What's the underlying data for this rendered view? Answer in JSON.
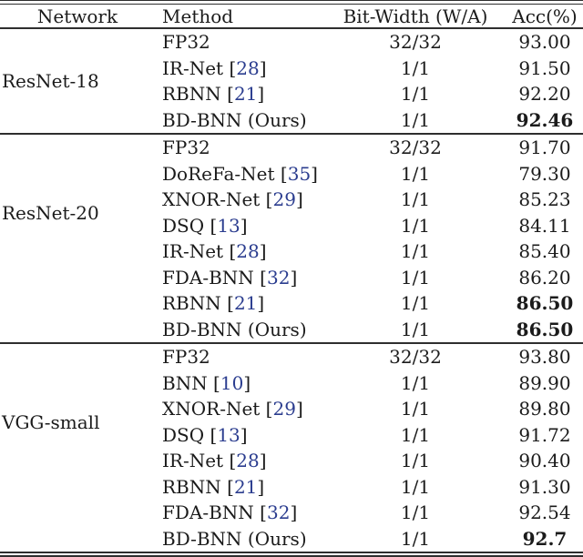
{
  "colors": {
    "citation_link": "#2b3d8f",
    "rule": "#2e2e2e",
    "text": "#1b1b1b"
  },
  "table": {
    "headers": {
      "network": "Network",
      "method": "Method",
      "bitwidth": "Bit-Width (W/A)",
      "acc": "Acc(%)"
    },
    "groups": [
      {
        "network": "ResNet-18",
        "rows": [
          {
            "method": "FP32",
            "cite": "",
            "bitwidth": "32/32",
            "acc": "93.00",
            "bold": false
          },
          {
            "method": "IR-Net",
            "cite": "28",
            "bitwidth": "1/1",
            "acc": "91.50",
            "bold": false
          },
          {
            "method": "RBNN",
            "cite": "21",
            "bitwidth": "1/1",
            "acc": "92.20",
            "bold": false
          },
          {
            "method": "BD-BNN (Ours)",
            "cite": "",
            "bitwidth": "1/1",
            "acc": "92.46",
            "bold": true
          }
        ]
      },
      {
        "network": "ResNet-20",
        "rows": [
          {
            "method": "FP32",
            "cite": "",
            "bitwidth": "32/32",
            "acc": "91.70",
            "bold": false
          },
          {
            "method": "DoReFa-Net",
            "cite": "35",
            "bitwidth": "1/1",
            "acc": "79.30",
            "bold": false
          },
          {
            "method": "XNOR-Net",
            "cite": "29",
            "bitwidth": "1/1",
            "acc": "85.23",
            "bold": false
          },
          {
            "method": "DSQ",
            "cite": "13",
            "bitwidth": "1/1",
            "acc": "84.11",
            "bold": false
          },
          {
            "method": "IR-Net",
            "cite": "28",
            "bitwidth": "1/1",
            "acc": "85.40",
            "bold": false
          },
          {
            "method": "FDA-BNN",
            "cite": "32",
            "bitwidth": "1/1",
            "acc": "86.20",
            "bold": false
          },
          {
            "method": "RBNN",
            "cite": "21",
            "bitwidth": "1/1",
            "acc": "86.50",
            "bold": true
          },
          {
            "method": "BD-BNN (Ours)",
            "cite": "",
            "bitwidth": "1/1",
            "acc": "86.50",
            "bold": true
          }
        ]
      },
      {
        "network": "VGG-small",
        "rows": [
          {
            "method": "FP32",
            "cite": "",
            "bitwidth": "32/32",
            "acc": "93.80",
            "bold": false
          },
          {
            "method": "BNN",
            "cite": "10",
            "bitwidth": "1/1",
            "acc": "89.90",
            "bold": false
          },
          {
            "method": "XNOR-Net",
            "cite": "29",
            "bitwidth": "1/1",
            "acc": "89.80",
            "bold": false
          },
          {
            "method": "DSQ",
            "cite": "13",
            "bitwidth": "1/1",
            "acc": "91.72",
            "bold": false
          },
          {
            "method": "IR-Net",
            "cite": "28",
            "bitwidth": "1/1",
            "acc": "90.40",
            "bold": false
          },
          {
            "method": "RBNN",
            "cite": "21",
            "bitwidth": "1/1",
            "acc": "91.30",
            "bold": false
          },
          {
            "method": "FDA-BNN",
            "cite": "32",
            "bitwidth": "1/1",
            "acc": "92.54",
            "bold": false
          },
          {
            "method": "BD-BNN (Ours)",
            "cite": "",
            "bitwidth": "1/1",
            "acc": "92.7",
            "bold": true
          }
        ]
      }
    ]
  }
}
